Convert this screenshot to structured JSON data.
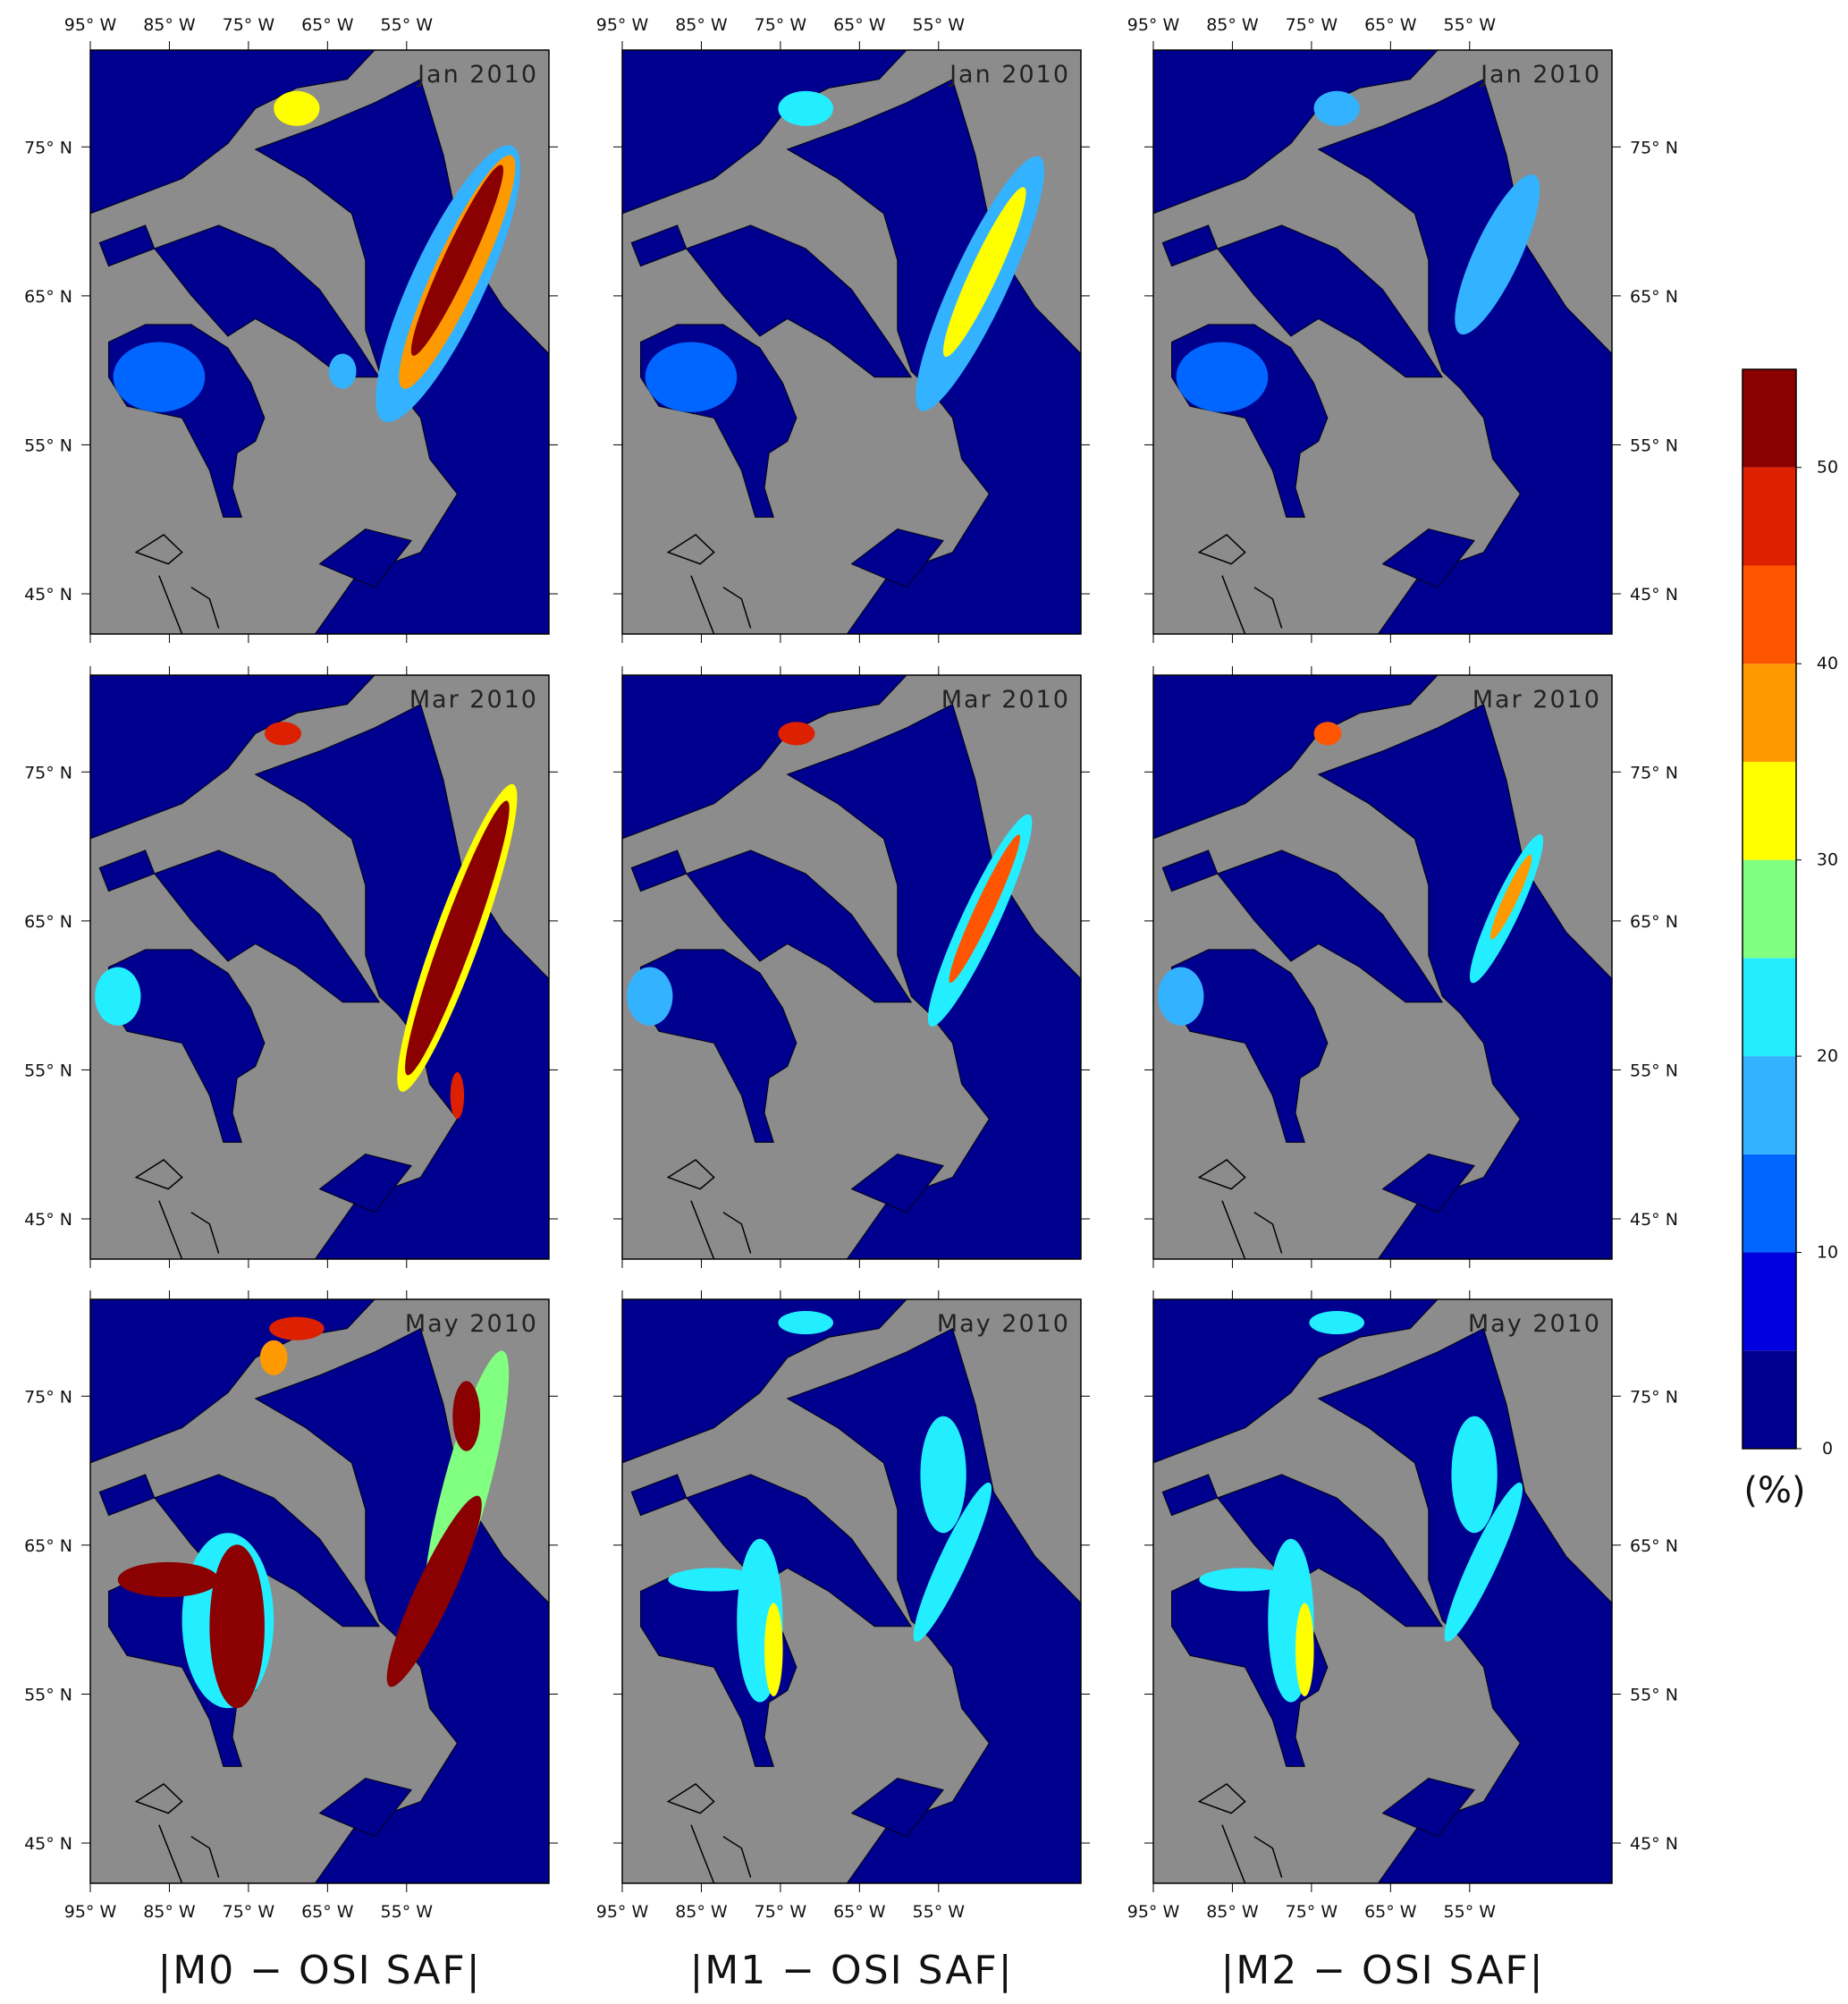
{
  "figure": {
    "panels": [
      {
        "label": "Jan 2010"
      },
      {
        "label": "Jan 2010"
      },
      {
        "label": "Jan 2010"
      },
      {
        "label": "Mar 2010"
      },
      {
        "label": "Mar 2010"
      },
      {
        "label": "Mar 2010"
      },
      {
        "label": "May 2010"
      },
      {
        "label": "May 2010"
      },
      {
        "label": "May 2010"
      }
    ],
    "column_labels": [
      "|M0 − OSI SAF|",
      "|M1 − OSI SAF|",
      "|M2 − OSI SAF|"
    ],
    "lon_range": [
      -95,
      -37
    ],
    "lat_range": [
      42.3,
      81.5
    ],
    "lon_ticks": [
      {
        "value": -95,
        "label": "95° W"
      },
      {
        "value": -85,
        "label": "85° W"
      },
      {
        "value": -75,
        "label": "75° W"
      },
      {
        "value": -65,
        "label": "65° W"
      },
      {
        "value": -55,
        "label": "55° W"
      }
    ],
    "lat_ticks": [
      {
        "value": 75,
        "label": "75° N"
      },
      {
        "value": 65,
        "label": "65° N"
      },
      {
        "value": 55,
        "label": "55° N"
      },
      {
        "value": 45,
        "label": "45° N"
      }
    ],
    "colorbar": {
      "unit": "(%)",
      "range": [
        0,
        55
      ],
      "ticks": [
        0,
        10,
        20,
        30,
        40,
        50
      ],
      "colors": [
        "#00008f",
        "#0000e0",
        "#0066ff",
        "#33b2ff",
        "#22eeff",
        "#80ff80",
        "#ffff00",
        "#ff9900",
        "#ff5500",
        "#dd2000",
        "#8b0000"
      ]
    }
  }
}
